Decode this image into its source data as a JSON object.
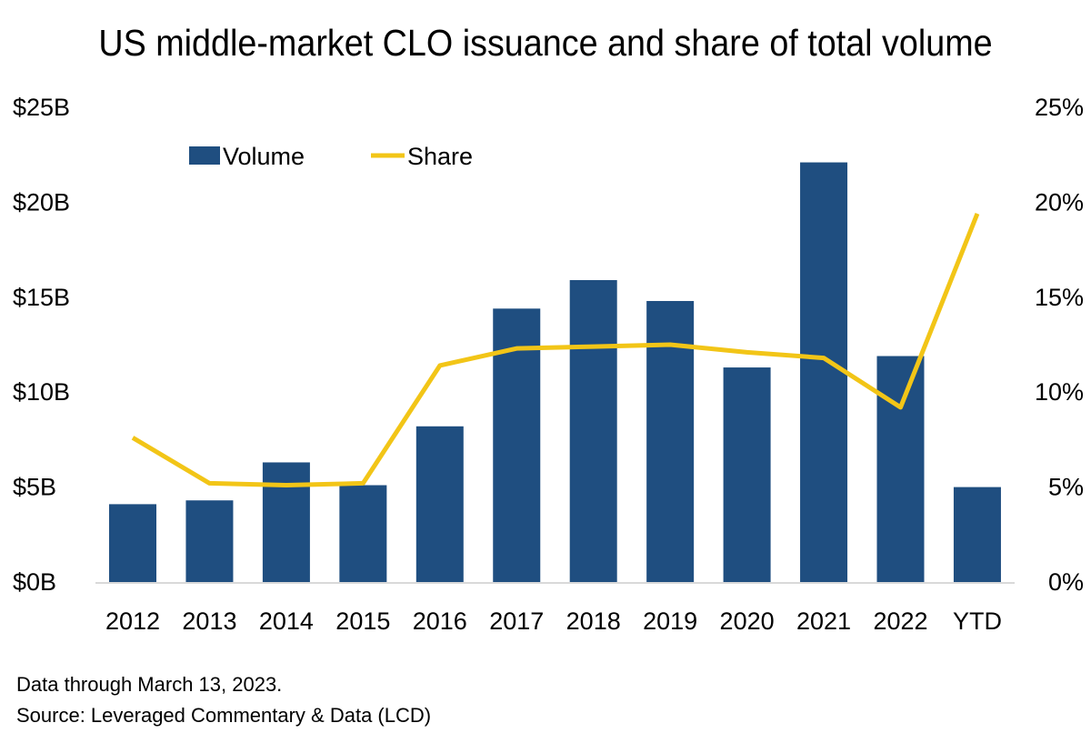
{
  "chart_data": {
    "type": "bar+line",
    "title": "US middle-market CLO issuance and share of total volume",
    "categories": [
      "2012",
      "2013",
      "2014",
      "2015",
      "2016",
      "2017",
      "2018",
      "2019",
      "2020",
      "2021",
      "2022",
      "YTD"
    ],
    "series": [
      {
        "name": "Volume",
        "type": "bar",
        "axis": "left",
        "color": "#1f4e80",
        "values": [
          4.1,
          4.3,
          6.3,
          5.1,
          8.2,
          14.4,
          15.9,
          14.8,
          11.3,
          22.1,
          11.9,
          5.0
        ]
      },
      {
        "name": "Share",
        "type": "line",
        "axis": "right",
        "color": "#f2c517",
        "values": [
          7.6,
          5.2,
          5.1,
          5.2,
          11.4,
          12.3,
          12.4,
          12.5,
          12.1,
          11.8,
          9.2,
          19.4
        ]
      }
    ],
    "y_left": {
      "range": [
        0,
        25
      ],
      "ticks": [
        "$0B",
        "$5B",
        "$10B",
        "$15B",
        "$20B",
        "$25B"
      ]
    },
    "y_right": {
      "range": [
        0,
        25
      ],
      "ticks": [
        "0%",
        "5%",
        "10%",
        "15%",
        "20%",
        "25%"
      ]
    },
    "legend": "top-left",
    "grid": false
  },
  "footnotes": [
    "Data through March 13, 2023.",
    "Source: Leveraged Commentary & Data (LCD)"
  ]
}
